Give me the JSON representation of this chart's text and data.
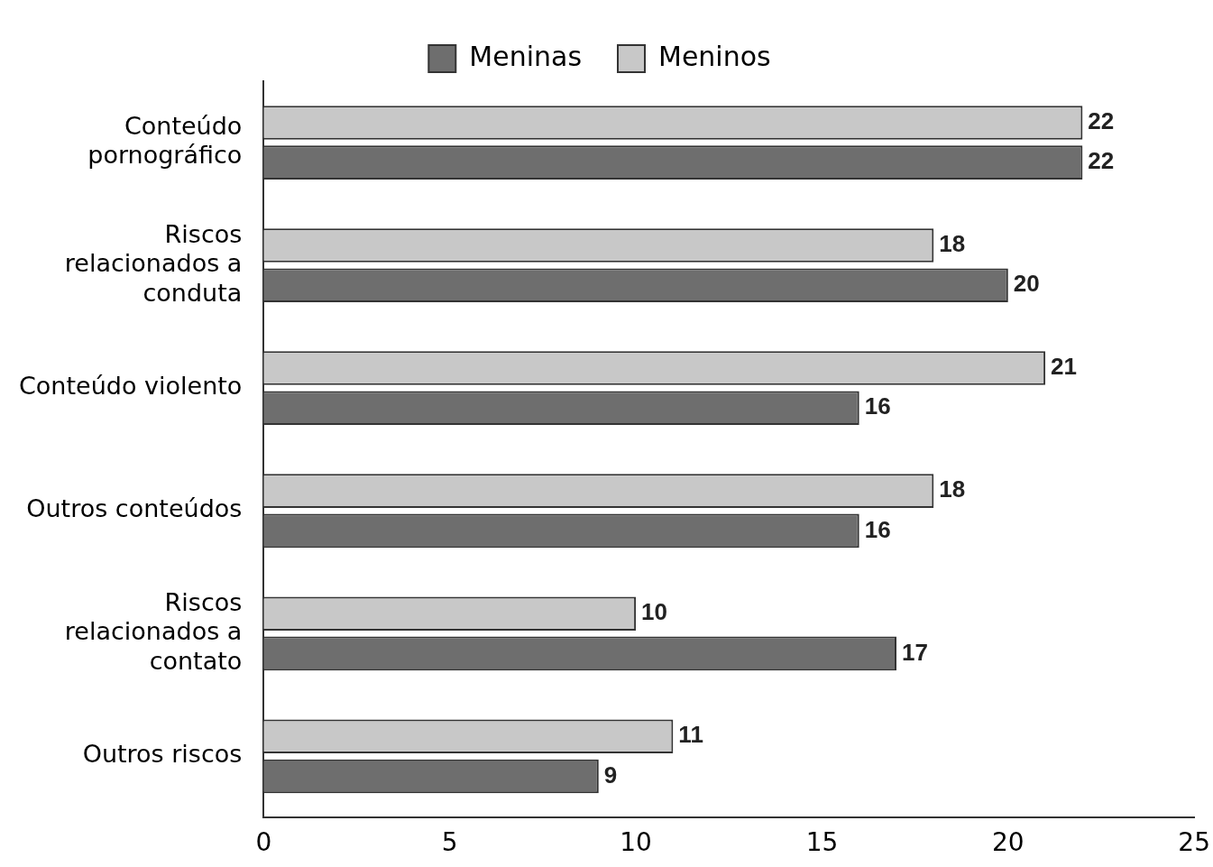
{
  "chart_data": {
    "type": "bar",
    "orientation": "horizontal",
    "categories": [
      "Conteúdo pornográfico",
      "Riscos relacionados a conduta",
      "Conteúdo violento",
      "Outros conteúdos",
      "Riscos relacionados a contato",
      "Outros riscos"
    ],
    "series": [
      {
        "name": "Meninos",
        "color": "#c8c8c8",
        "values": [
          22,
          18,
          21,
          18,
          10,
          11
        ]
      },
      {
        "name": "Meninas",
        "color": "#6e6e6e",
        "values": [
          22,
          20,
          16,
          16,
          17,
          9
        ]
      }
    ],
    "xlim": [
      0,
      25
    ],
    "xticks": [
      0,
      5,
      10,
      15,
      20,
      25
    ],
    "data_labels": true,
    "grid": false,
    "legend": "top"
  }
}
